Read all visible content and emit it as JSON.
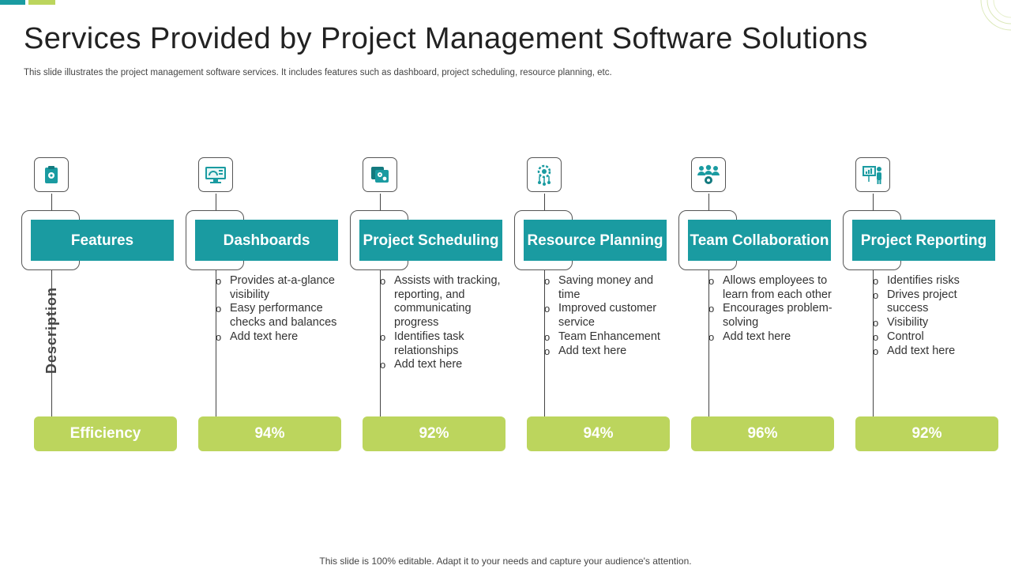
{
  "title": "Services Provided by Project Management Software Solutions",
  "subtitle": "This slide illustrates the project management software services. It includes features such as dashboard, project scheduling, resource planning, etc.",
  "footer": "This slide is 100% editable. Adapt it to your needs and capture your audience's attention.",
  "colors": {
    "teal": "#1a9ba1",
    "green": "#bcd55d",
    "accent_teal": "#1a9ba1",
    "accent_green": "#bcd55d"
  },
  "row_label": "Description",
  "columns": [
    {
      "icon": "clipboard-gear-icon",
      "header": "Features",
      "items": [],
      "metric": "Efficiency"
    },
    {
      "icon": "monitor-dashboard-icon",
      "header": "Dashboards",
      "items": [
        "Provides at-a-glance visibility",
        "Easy performance checks and balances",
        "Add text here"
      ],
      "metric": "94%"
    },
    {
      "icon": "schedule-gears-icon",
      "header": "Project Scheduling",
      "items": [
        "Assists with tracking, reporting, and communicating progress",
        "Identifies task relationships",
        "Add text here"
      ],
      "metric": "92%"
    },
    {
      "icon": "resource-network-icon",
      "header": "Resource Planning",
      "items": [
        "Saving money and time",
        "Improved customer service",
        "Team Enhancement",
        "Add text here"
      ],
      "metric": "94%"
    },
    {
      "icon": "team-gear-icon",
      "header": "Team Collaboration",
      "items": [
        "Allows employees to learn from each other",
        "Encourages problem-solving",
        "Add text here"
      ],
      "metric": "96%"
    },
    {
      "icon": "presentation-reporting-icon",
      "header": "Project Reporting",
      "items": [
        "Identifies risks",
        "Drives project success",
        "Visibility",
        "Control",
        "Add text here"
      ],
      "metric": "92%"
    }
  ]
}
